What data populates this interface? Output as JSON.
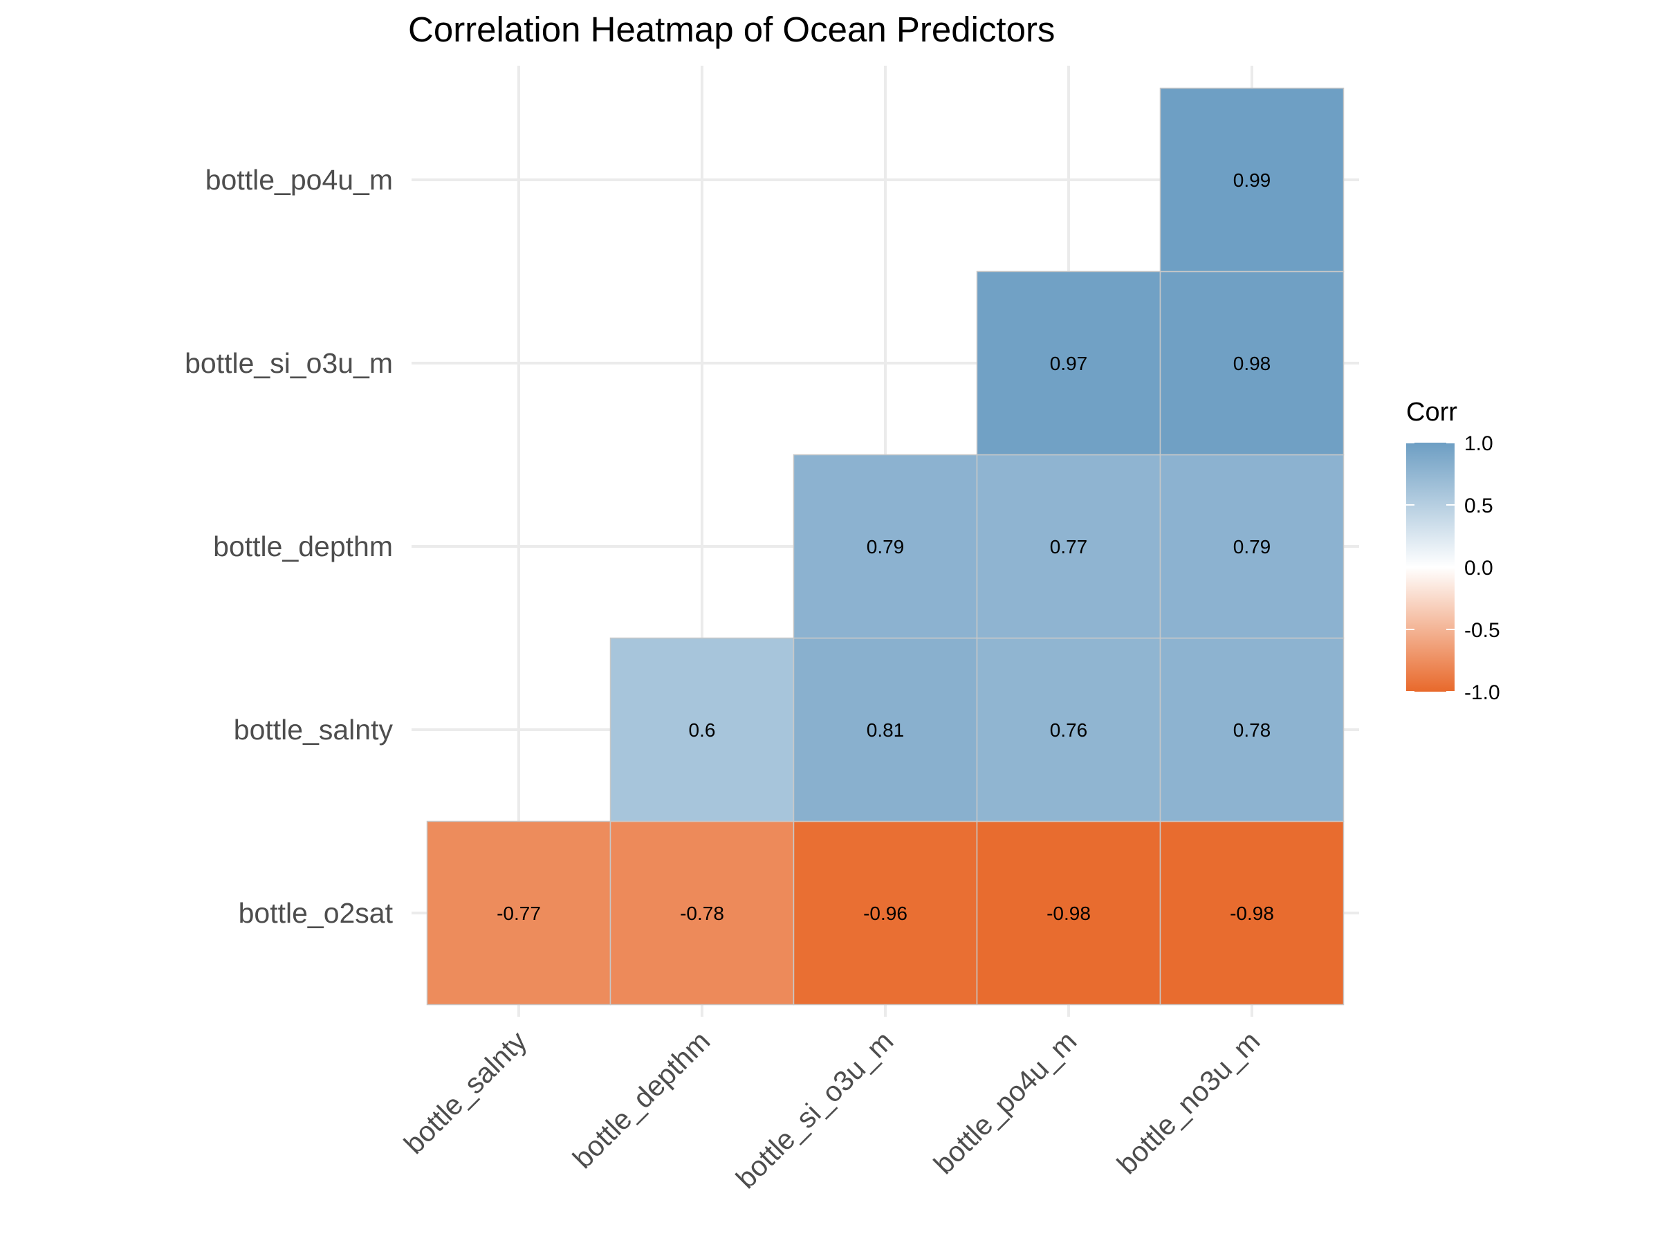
{
  "chart_data": {
    "type": "heatmap",
    "title": "Correlation Heatmap of Ocean Predictors",
    "x_categories": [
      "bottle_salnty",
      "bottle_depthm",
      "bottle_si_o3u_m",
      "bottle_po4u_m",
      "bottle_no3u_m"
    ],
    "y_categories": [
      "bottle_o2sat",
      "bottle_salnty",
      "bottle_depthm",
      "bottle_si_o3u_m",
      "bottle_po4u_m"
    ],
    "cells": [
      {
        "x": "bottle_salnty",
        "y": "bottle_o2sat",
        "value": -0.77,
        "label": "-0.77"
      },
      {
        "x": "bottle_depthm",
        "y": "bottle_o2sat",
        "value": -0.78,
        "label": "-0.78"
      },
      {
        "x": "bottle_si_o3u_m",
        "y": "bottle_o2sat",
        "value": -0.96,
        "label": "-0.96"
      },
      {
        "x": "bottle_po4u_m",
        "y": "bottle_o2sat",
        "value": -0.98,
        "label": "-0.98"
      },
      {
        "x": "bottle_no3u_m",
        "y": "bottle_o2sat",
        "value": -0.98,
        "label": "-0.98"
      },
      {
        "x": "bottle_depthm",
        "y": "bottle_salnty",
        "value": 0.6,
        "label": "0.6"
      },
      {
        "x": "bottle_si_o3u_m",
        "y": "bottle_salnty",
        "value": 0.81,
        "label": "0.81"
      },
      {
        "x": "bottle_po4u_m",
        "y": "bottle_salnty",
        "value": 0.76,
        "label": "0.76"
      },
      {
        "x": "bottle_no3u_m",
        "y": "bottle_salnty",
        "value": 0.78,
        "label": "0.78"
      },
      {
        "x": "bottle_si_o3u_m",
        "y": "bottle_depthm",
        "value": 0.79,
        "label": "0.79"
      },
      {
        "x": "bottle_po4u_m",
        "y": "bottle_depthm",
        "value": 0.77,
        "label": "0.77"
      },
      {
        "x": "bottle_no3u_m",
        "y": "bottle_depthm",
        "value": 0.79,
        "label": "0.79"
      },
      {
        "x": "bottle_po4u_m",
        "y": "bottle_si_o3u_m",
        "value": 0.97,
        "label": "0.97"
      },
      {
        "x": "bottle_no3u_m",
        "y": "bottle_si_o3u_m",
        "value": 0.98,
        "label": "0.98"
      },
      {
        "x": "bottle_no3u_m",
        "y": "bottle_po4u_m",
        "value": 0.99,
        "label": "0.99"
      }
    ],
    "legend": {
      "title": "Corr",
      "placement": "right",
      "range": [
        -1,
        1
      ],
      "ticks": [
        1.0,
        0.5,
        0.0,
        -0.5,
        -1.0
      ],
      "tick_labels": [
        "1.0",
        "0.5",
        "0.0",
        "-0.5",
        "-1.0"
      ]
    },
    "colors": {
      "high": "#6d9ec3",
      "mid": "#ffffff",
      "low": "#e8692b",
      "grid": "#ebebeb",
      "cell_border": "#c8c8c8"
    },
    "grid": true
  }
}
